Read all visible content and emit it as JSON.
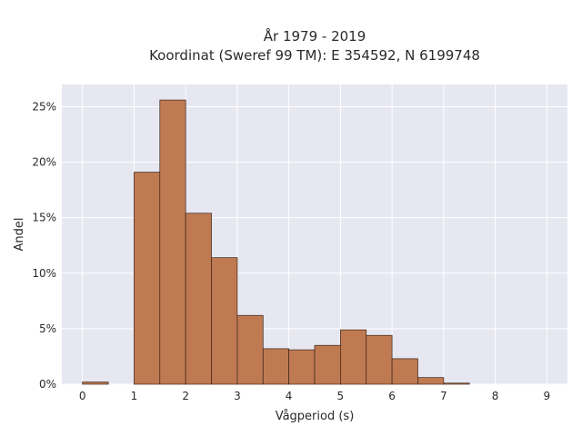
{
  "chart_data": {
    "type": "bar",
    "title_lines": [
      "År 1979 - 2019",
      "Koordinat (Sweref 99 TM): E 354592, N 6199748"
    ],
    "xlabel": "Vågperiod (s)",
    "ylabel": "Andel",
    "bin_width": 0.5,
    "x": [
      0,
      0.5,
      1.0,
      1.5,
      2.0,
      2.5,
      3.0,
      3.5,
      4.0,
      4.5,
      5.0,
      5.5,
      6.0,
      6.5,
      7.0
    ],
    "values": [
      0.2,
      0,
      19.1,
      25.6,
      15.4,
      11.4,
      6.2,
      3.2,
      3.1,
      3.5,
      4.9,
      4.4,
      2.3,
      0.6,
      0.1
    ],
    "xlim": [
      -0.4,
      9.4
    ],
    "ylim": [
      0,
      27
    ],
    "xticks": [
      0,
      1,
      2,
      3,
      4,
      5,
      6,
      7,
      8,
      9
    ],
    "xtick_labels": [
      "0",
      "1",
      "2",
      "3",
      "4",
      "5",
      "6",
      "7",
      "8",
      "9"
    ],
    "yticks": [
      0,
      5,
      10,
      15,
      20,
      25
    ],
    "ytick_labels": [
      "0%",
      "5%",
      "10%",
      "15%",
      "20%",
      "25%"
    ],
    "grid": true,
    "colors": {
      "bar": "#bf7a52",
      "bar_edge": "#3a2418",
      "plot_bg": "#e6e7f1",
      "grid": "#ffffff"
    }
  }
}
